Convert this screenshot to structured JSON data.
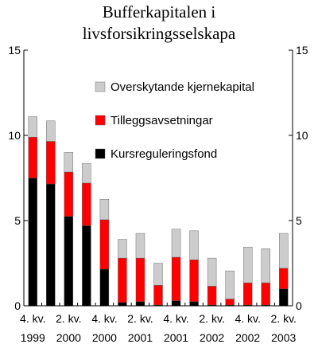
{
  "chart_data": {
    "type": "bar",
    "stacked": true,
    "title_lines": [
      "Bufferkapitalen i",
      "livsforsikringsselskapa"
    ],
    "categories": [
      "4. kv. 1999",
      "1. kv. 2000",
      "2. kv. 2000",
      "3. kv. 2000",
      "4. kv. 2000",
      "1. kv. 2001",
      "2. kv. 2001",
      "3. kv. 2001",
      "4. kv. 2001",
      "1. kv. 2002",
      "2. kv. 2002",
      "3. kv. 2002",
      "4. kv. 2002",
      "1. kv. 2003",
      "2. kv. 2003"
    ],
    "x_tick_labels": [
      {
        "index": 0,
        "line1": "4. kv.",
        "line2": "1999"
      },
      {
        "index": 2,
        "line1": "2. kv.",
        "line2": "2000"
      },
      {
        "index": 4,
        "line1": "4. kv.",
        "line2": "2000"
      },
      {
        "index": 6,
        "line1": "2. kv.",
        "line2": "2001"
      },
      {
        "index": 8,
        "line1": "4. kv.",
        "line2": "2001"
      },
      {
        "index": 10,
        "line1": "2. kv.",
        "line2": "2002"
      },
      {
        "index": 12,
        "line1": "4. kv.",
        "line2": "2002"
      },
      {
        "index": 14,
        "line1": "2. kv.",
        "line2": "2003"
      }
    ],
    "series": [
      {
        "name": "Kursreguleringsfond",
        "color": "#000000",
        "values": [
          7.5,
          7.15,
          5.25,
          4.7,
          2.15,
          0.2,
          0.25,
          0.05,
          0.3,
          0.25,
          0.05,
          0.05,
          0.05,
          0.05,
          1.0
        ]
      },
      {
        "name": "Tilleggsavsetningar",
        "color": "#ff0000",
        "values": [
          2.4,
          2.5,
          2.6,
          2.5,
          2.9,
          2.6,
          2.55,
          1.15,
          2.55,
          2.45,
          1.1,
          0.35,
          1.3,
          1.3,
          1.2
        ]
      },
      {
        "name": "Overskytande kjernekapital",
        "color": "#cccccc",
        "values": [
          1.2,
          1.2,
          1.15,
          1.15,
          1.2,
          1.1,
          1.45,
          1.3,
          1.65,
          1.7,
          1.65,
          1.65,
          2.1,
          2.0,
          2.05
        ]
      }
    ],
    "legend_order": [
      "Overskytande kjernekapital",
      "Tilleggsavsetningar",
      "Kursreguleringsfond"
    ],
    "ylim": [
      0,
      15
    ],
    "y_ticks": [
      0,
      5,
      10,
      15
    ],
    "right_axis_mirrors_left": true,
    "grid": false,
    "legend_position": "upper-right"
  }
}
